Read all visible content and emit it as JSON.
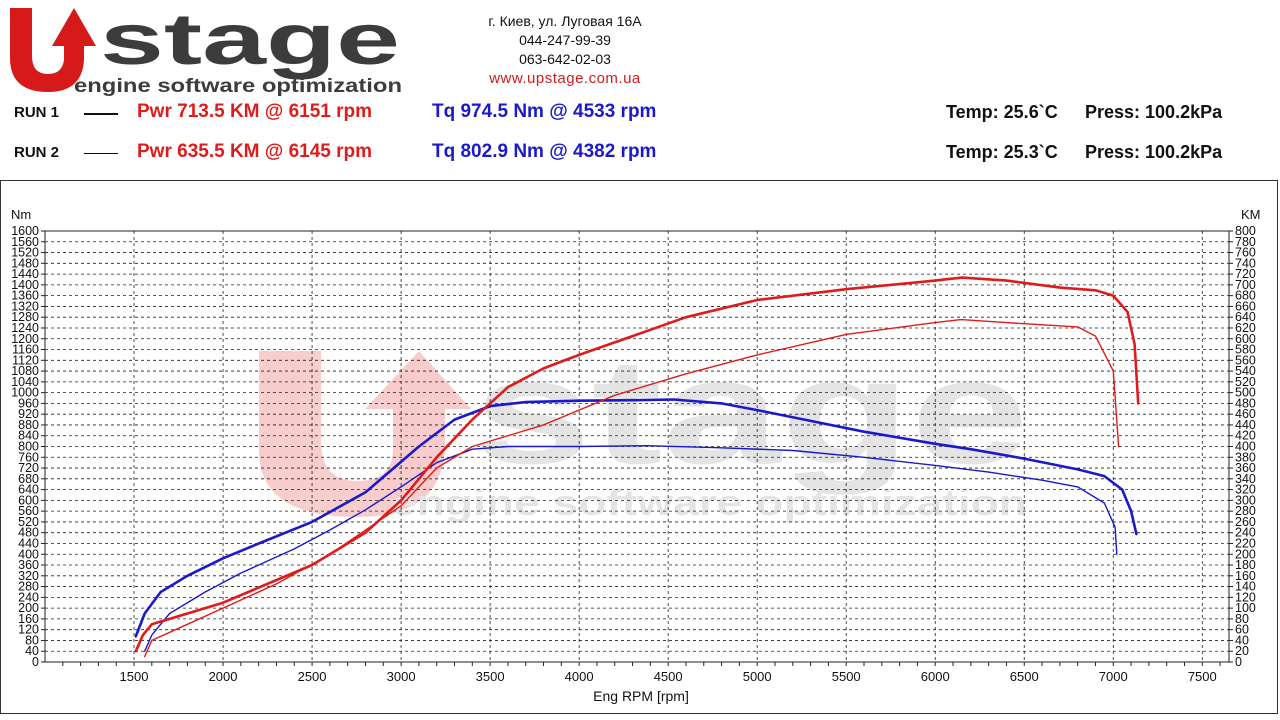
{
  "brand": {
    "name": "stage",
    "tagline": "engine software optimization",
    "watermark_name": "stage",
    "watermark_tagline": "engine software optimization",
    "colors": {
      "red": "#d61a1a",
      "gray": "#3c3c3c"
    }
  },
  "contacts": {
    "address": "г. Киев, ул. Луговая 16А",
    "phone1": "044-247-99-39",
    "phone2": "063-642-02-03",
    "url": "www.upstage.com.ua"
  },
  "runs": [
    {
      "label": "RUN 1",
      "pwr": "Pwr  713.5 KM @ 6151 rpm",
      "tq": "Tq 974.5 Nm @ 4533 rpm",
      "temp": "Temp: 25.6`C",
      "press": "Press: 100.2kPa"
    },
    {
      "label": "RUN 2",
      "pwr": "Pwr  635.5 KM @ 6145 rpm",
      "tq": "Tq 802.9 Nm @ 4382 rpm",
      "temp": "Temp: 25.3`C",
      "press": "Press: 100.2kPa"
    }
  ],
  "chart_data": {
    "type": "line",
    "xlabel": "Eng RPM [rpm]",
    "ylabel_left": "Nm",
    "ylabel_right": "KM",
    "xlim": [
      1000,
      7650
    ],
    "xticks": [
      1500,
      2000,
      2500,
      3000,
      3500,
      4000,
      4500,
      5000,
      5500,
      6000,
      6500,
      7000,
      7500
    ],
    "ylim_left": [
      0,
      1600
    ],
    "ylim_right": [
      0,
      800
    ],
    "ytick_step_left": 40,
    "ytick_step_right": 20,
    "grid": true,
    "series": [
      {
        "run": 1,
        "quantity": "torque",
        "axis": "left",
        "color": "#1a1acc",
        "width": 2.6,
        "points": [
          [
            1510,
            95
          ],
          [
            1560,
            180
          ],
          [
            1650,
            260
          ],
          [
            1800,
            320
          ],
          [
            2000,
            385
          ],
          [
            2200,
            440
          ],
          [
            2500,
            520
          ],
          [
            2800,
            630
          ],
          [
            3100,
            800
          ],
          [
            3300,
            900
          ],
          [
            3500,
            950
          ],
          [
            3700,
            965
          ],
          [
            4000,
            970
          ],
          [
            4300,
            972
          ],
          [
            4533,
            974.5
          ],
          [
            4800,
            960
          ],
          [
            5000,
            935
          ],
          [
            5300,
            895
          ],
          [
            5600,
            855
          ],
          [
            6000,
            810
          ],
          [
            6200,
            790
          ],
          [
            6500,
            755
          ],
          [
            6800,
            715
          ],
          [
            6950,
            690
          ],
          [
            7050,
            640
          ],
          [
            7100,
            560
          ],
          [
            7130,
            475
          ]
        ]
      },
      {
        "run": 2,
        "quantity": "torque",
        "axis": "left",
        "color": "#1a1acc",
        "width": 1.4,
        "points": [
          [
            1560,
            40
          ],
          [
            1600,
            100
          ],
          [
            1700,
            180
          ],
          [
            1900,
            260
          ],
          [
            2100,
            330
          ],
          [
            2400,
            420
          ],
          [
            2600,
            490
          ],
          [
            2800,
            565
          ],
          [
            3000,
            650
          ],
          [
            3200,
            740
          ],
          [
            3400,
            790
          ],
          [
            3600,
            800
          ],
          [
            4000,
            800
          ],
          [
            4382,
            802.9
          ],
          [
            4800,
            795
          ],
          [
            5200,
            785
          ],
          [
            5600,
            760
          ],
          [
            6000,
            730
          ],
          [
            6300,
            705
          ],
          [
            6600,
            675
          ],
          [
            6800,
            650
          ],
          [
            6950,
            590
          ],
          [
            7010,
            500
          ],
          [
            7020,
            400
          ]
        ]
      },
      {
        "run": 1,
        "quantity": "power",
        "axis": "right",
        "color": "#e01b1b",
        "width": 2.6,
        "points": [
          [
            1510,
            20
          ],
          [
            1550,
            50
          ],
          [
            1600,
            70
          ],
          [
            2000,
            110
          ],
          [
            2500,
            180
          ],
          [
            2800,
            240
          ],
          [
            3000,
            300
          ],
          [
            3200,
            380
          ],
          [
            3400,
            450
          ],
          [
            3600,
            510
          ],
          [
            3800,
            545
          ],
          [
            4000,
            570
          ],
          [
            4300,
            605
          ],
          [
            4600,
            640
          ],
          [
            5000,
            672
          ],
          [
            5500,
            692
          ],
          [
            6000,
            708
          ],
          [
            6151,
            713.5
          ],
          [
            6400,
            708
          ],
          [
            6700,
            695
          ],
          [
            6900,
            690
          ],
          [
            7000,
            680
          ],
          [
            7080,
            650
          ],
          [
            7120,
            590
          ],
          [
            7140,
            480
          ]
        ]
      },
      {
        "run": 2,
        "quantity": "power",
        "axis": "right",
        "color": "#e01b1b",
        "width": 1.4,
        "points": [
          [
            1560,
            10
          ],
          [
            1600,
            40
          ],
          [
            1800,
            70
          ],
          [
            2000,
            100
          ],
          [
            2300,
            145
          ],
          [
            2600,
            200
          ],
          [
            3000,
            290
          ],
          [
            3200,
            360
          ],
          [
            3400,
            400
          ],
          [
            3800,
            440
          ],
          [
            4200,
            495
          ],
          [
            4600,
            535
          ],
          [
            5000,
            570
          ],
          [
            5500,
            608
          ],
          [
            6000,
            630
          ],
          [
            6145,
            635.5
          ],
          [
            6400,
            630
          ],
          [
            6800,
            622
          ],
          [
            6900,
            605
          ],
          [
            7000,
            540
          ],
          [
            7030,
            400
          ]
        ]
      }
    ]
  }
}
